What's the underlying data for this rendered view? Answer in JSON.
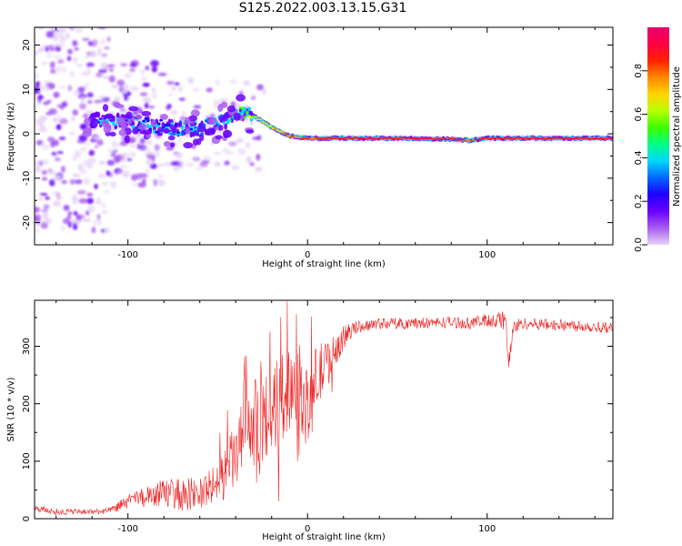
{
  "figure": {
    "title": "S125.2022.003.13.15.G31"
  },
  "chart_data": [
    {
      "type": "heatmap",
      "title": "S125.2022.003.13.15.G31",
      "xlabel": "Height of straight line (km)",
      "ylabel": "Frequency (Hz)",
      "xlim": [
        -152,
        170
      ],
      "ylim": [
        -25,
        24
      ],
      "x_ticks": [
        -100,
        0,
        100
      ],
      "y_ticks": [
        -20,
        -10,
        0,
        10,
        20
      ],
      "colorbar": {
        "label": "Normalized spectral amplitude",
        "range": [
          0,
          1
        ],
        "ticks": [
          0.0,
          0.2,
          0.4,
          0.6,
          0.8
        ],
        "tick_labels": [
          "0.0",
          "0.2",
          "0.4",
          "0.6",
          "0.8"
        ],
        "colormap": [
          "#e7d3f6",
          "#a95cf0",
          "#6a00ff",
          "#1f00ff",
          "#0066ff",
          "#00d6ff",
          "#00ff88",
          "#3cff00",
          "#b8ff00",
          "#ffd400",
          "#ff8800",
          "#ff2200",
          "#ff0044",
          "#e8006e"
        ]
      },
      "ridge": {
        "description_points_x": [
          -120,
          -100,
          -80,
          -60,
          -45,
          -38,
          -30,
          -20,
          -10,
          0,
          20,
          50,
          80,
          90,
          100,
          110,
          130,
          170
        ],
        "description_points_y": [
          3,
          2.5,
          1.5,
          1,
          3,
          4.5,
          4,
          1.5,
          -0.5,
          -1,
          -1,
          -1,
          -1.2,
          -1.5,
          -1,
          -1,
          -1,
          -1
        ],
        "values": [
          0.15,
          0.2,
          0.25,
          0.3,
          0.4,
          0.55,
          0.6,
          0.7,
          0.8,
          0.85,
          0.9,
          0.95,
          0.95,
          0.85,
          0.9,
          0.9,
          0.95,
          0.95
        ]
      }
    },
    {
      "type": "line",
      "title": "",
      "xlabel": "Height of straight line (km)",
      "ylabel": "SNR (10 * v/v)",
      "xlim": [
        -152,
        170
      ],
      "ylim": [
        0,
        380
      ],
      "x_ticks": [
        -100,
        0,
        100
      ],
      "y_ticks": [
        0,
        100,
        200,
        300
      ],
      "color": "#ee2222",
      "envelope_x": [
        -152,
        -140,
        -120,
        -110,
        -100,
        -90,
        -80,
        -70,
        -60,
        -50,
        -40,
        -35,
        -30,
        -25,
        -20,
        -15,
        -10,
        -5,
        0,
        5,
        10,
        15,
        20,
        25,
        30,
        40,
        60,
        80,
        90,
        100,
        105,
        110,
        112,
        115,
        120,
        130,
        150,
        170
      ],
      "envelope_y": [
        18,
        12,
        12,
        14,
        30,
        38,
        45,
        42,
        45,
        60,
        110,
        145,
        165,
        175,
        185,
        210,
        230,
        240,
        185,
        245,
        265,
        290,
        315,
        330,
        335,
        340,
        340,
        342,
        340,
        345,
        345,
        345,
        275,
        335,
        340,
        338,
        336,
        332
      ],
      "noise_amplitude": [
        6,
        6,
        5,
        6,
        12,
        18,
        25,
        28,
        30,
        35,
        60,
        70,
        75,
        80,
        80,
        80,
        80,
        70,
        70,
        60,
        45,
        30,
        20,
        12,
        10,
        10,
        10,
        10,
        10,
        12,
        14,
        20,
        20,
        14,
        10,
        10,
        10,
        10
      ]
    }
  ]
}
